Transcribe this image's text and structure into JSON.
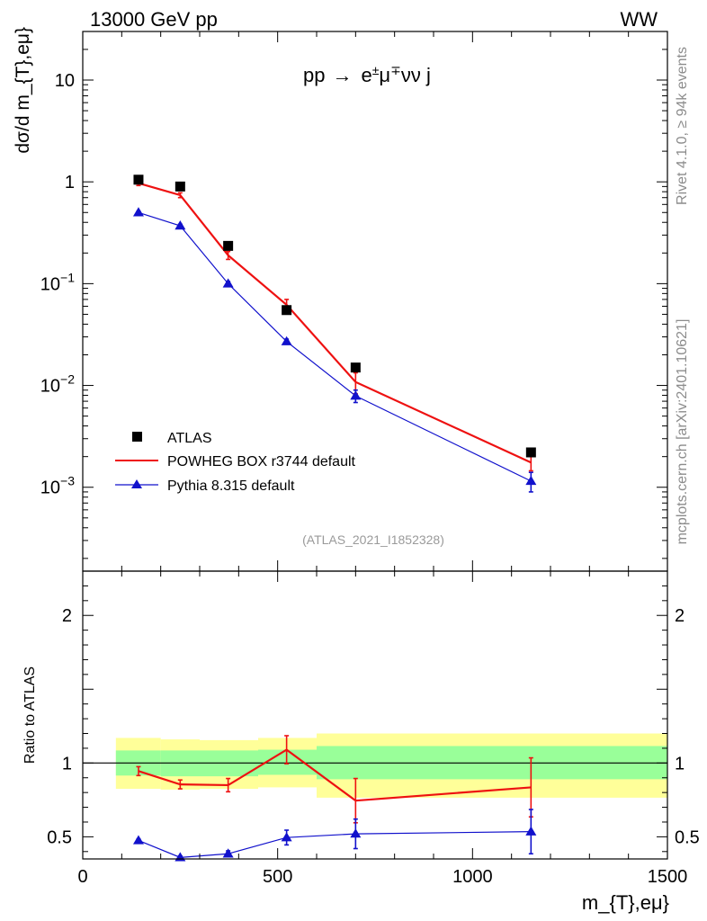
{
  "header": {
    "left": "13000 GeV pp",
    "right": "WW"
  },
  "side_labels": {
    "rivet": "Rivet 4.1.0, ≥ 94k events",
    "mcplots": "mcplots.cern.ch [arXiv:2401.10621]"
  },
  "colors": {
    "data": "#000000",
    "powheg": "#ee1111",
    "pythia": "#1111cc",
    "band_inner": "#99ff99",
    "band_outer": "#ffff99"
  },
  "chart_data": {
    "type": "scatter",
    "title": "pp → e±μ∓νν j",
    "process": {
      "base": "pp",
      "arrow": "→",
      "e": "e",
      "e_sup": "±",
      "mu": "μ",
      "mu_sup": "∓",
      "rest": "νν j"
    },
    "analysis_id": "(ATLAS_2021_I1852328)",
    "xlabel": "m_{T},eμ}",
    "ylabel": "dσ/d m_{T},eμ}",
    "ratio_ylabel": "Ratio to ATLAS",
    "xlim": [
      0,
      1500
    ],
    "ylim": [
      0.00015,
      30
    ],
    "yscale": "log",
    "ratio_ylim": [
      0.35,
      2.3
    ],
    "x_ticks": [
      "0",
      "500",
      "1000",
      "1500"
    ],
    "y_ticks": [
      {
        "value": 10,
        "base": "10",
        "exp": ""
      },
      {
        "value": 1,
        "base": "1",
        "exp": ""
      },
      {
        "value": 0.1,
        "base": "10",
        "exp": "−1"
      },
      {
        "value": 0.01,
        "base": "10",
        "exp": "−2"
      },
      {
        "value": 0.001,
        "base": "10",
        "exp": "−3"
      }
    ],
    "ratio_ticks": [
      {
        "value": 2,
        "label": "2"
      },
      {
        "value": 1,
        "label": "1"
      },
      {
        "value": 0.5,
        "label": "0.5"
      }
    ],
    "bins": [
      {
        "lo": 85,
        "hi": 200
      },
      {
        "lo": 200,
        "hi": 300
      },
      {
        "lo": 300,
        "hi": 450
      },
      {
        "lo": 450,
        "hi": 600
      },
      {
        "lo": 600,
        "hi": 1500
      }
    ],
    "ratio_bands": [
      {
        "lo": 85,
        "hi": 200,
        "inner": [
          0.915,
          1.085
        ],
        "outer": [
          0.825,
          1.17
        ]
      },
      {
        "lo": 200,
        "hi": 300,
        "inner": [
          0.91,
          1.085
        ],
        "outer": [
          0.82,
          1.16
        ]
      },
      {
        "lo": 300,
        "hi": 450,
        "inner": [
          0.91,
          1.085
        ],
        "outer": [
          0.825,
          1.155
        ]
      },
      {
        "lo": 450,
        "hi": 600,
        "inner": [
          0.92,
          1.09
        ],
        "outer": [
          0.835,
          1.17
        ]
      },
      {
        "lo": 600,
        "hi": 1500,
        "inner": [
          0.89,
          1.115
        ],
        "outer": [
          0.765,
          1.2
        ]
      }
    ],
    "series": [
      {
        "name": "ATLAS",
        "marker": "square",
        "color": "#000000",
        "x": [
          143,
          250,
          373,
          523,
          700,
          1150
        ],
        "y": [
          1.05,
          0.9,
          0.235,
          0.055,
          0.015,
          0.0022
        ],
        "ratio": [
          1,
          1,
          1,
          1,
          1,
          1
        ]
      },
      {
        "name": "POWHEG BOX r3744 default",
        "marker": "line",
        "color": "#ee1111",
        "x": [
          143,
          250,
          373,
          523,
          700,
          1150
        ],
        "y": [
          0.97,
          0.74,
          0.19,
          0.062,
          0.0108,
          0.00175
        ],
        "y_err": [
          0.05,
          0.04,
          0.017,
          0.008,
          0.0025,
          0.0003
        ],
        "ratio": [
          0.945,
          0.855,
          0.85,
          1.09,
          0.745,
          0.835
        ],
        "ratio_err": [
          0.03,
          0.03,
          0.045,
          0.095,
          0.15,
          0.2
        ]
      },
      {
        "name": "Pythia 8.315 default",
        "marker": "triangle",
        "color": "#1111cc",
        "x": [
          143,
          250,
          373,
          523,
          700,
          1150
        ],
        "y": [
          0.5,
          0.37,
          0.1,
          0.027,
          0.0079,
          0.00115
        ],
        "y_err": [
          0.015,
          0.013,
          0.005,
          0.0015,
          0.0011,
          0.00025
        ],
        "ratio": [
          0.475,
          0.36,
          0.385,
          0.495,
          0.52,
          0.535
        ],
        "ratio_err": [
          0.01,
          0.01,
          0.02,
          0.05,
          0.1,
          0.15
        ]
      }
    ]
  }
}
